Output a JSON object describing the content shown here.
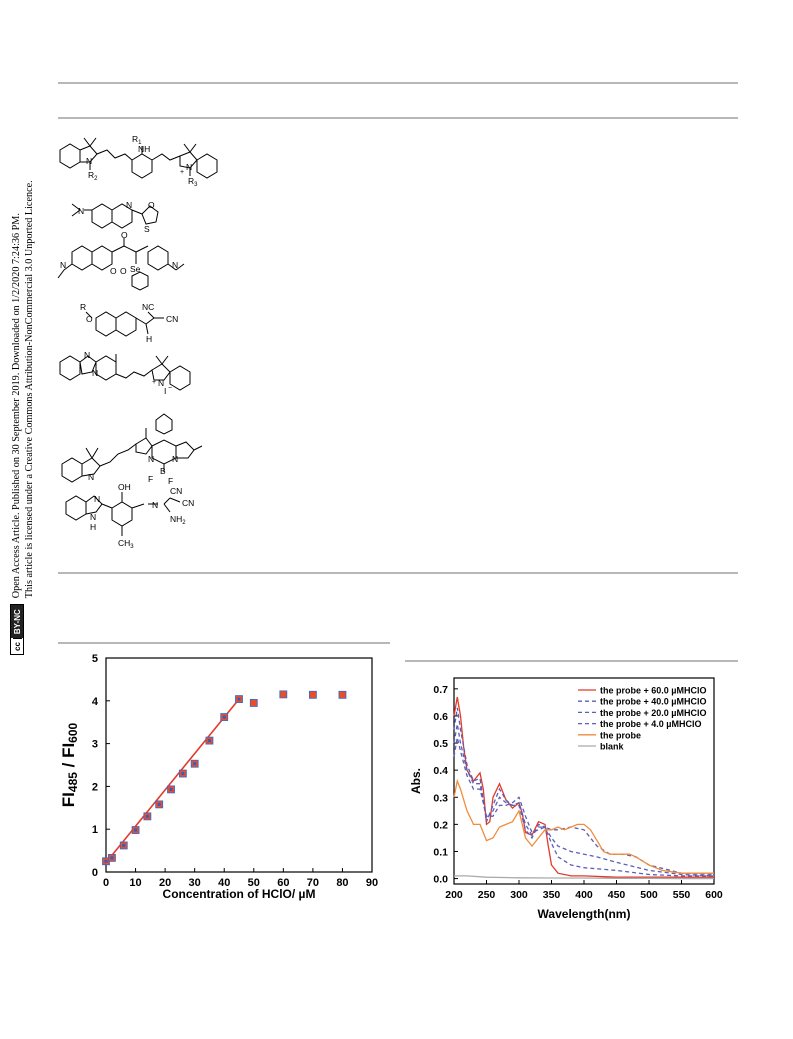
{
  "license": {
    "badge_cc": "cc",
    "badge_terms": "BY-NC",
    "line1": "Open Access Article. Published on 30 September 2019. Downloaded on 1/2/2020 7:24:36 PM.",
    "line2": "This article is licensed under a Creative Commons Attribution-NonCommercial 3.0 Unported Licence."
  },
  "structures": {
    "s1": {
      "r1": "R",
      "r1_sub": "1",
      "nh": "NH",
      "r2": "R",
      "r2_sub": "2",
      "n_left": "N",
      "n_right": "N",
      "plus": "+",
      "r3": "R",
      "r3_sub": "3"
    },
    "s2": {
      "n_amine": "N",
      "n_ring": "N",
      "o": "O",
      "s": "S"
    },
    "s3": {
      "o_keto": "O",
      "se": "Se",
      "n_left": "N",
      "n_right": "N",
      "o_ring": "O",
      "o_lactone": "O"
    },
    "s4": {
      "r": "R",
      "o": "O",
      "nc": "NC",
      "cn": "CN",
      "h": "H"
    },
    "s5": {
      "n1": "N",
      "n2": "N",
      "n3": "N",
      "plus": "+",
      "iodide": "I",
      "minus": "−"
    },
    "s6": {
      "n_indole": "N",
      "n_bodipy1": "N",
      "n_bodipy2": "N",
      "b": "B",
      "f1": "F",
      "f2": "F"
    },
    "s7": {
      "n_imid": "N",
      "nh": "N",
      "h": "H",
      "oh": "OH",
      "n_imine": "N",
      "cn1": "CN",
      "cn2": "CN",
      "nh2": "NH",
      "nh2_sub": "2",
      "ch3": "CH",
      "ch3_sub": "3"
    }
  },
  "chart_data": [
    {
      "type": "scatter",
      "ylabel": "FI485 / FI600",
      "ylabel_main": "FI",
      "ylabel_sub1": "485",
      "ylabel_sep": " / FI",
      "ylabel_sub2": "600",
      "xlabel": "Concentration of HClO/ µM",
      "xlim": [
        0,
        90
      ],
      "ylim": [
        0,
        5
      ],
      "xticks": [
        0,
        10,
        20,
        30,
        40,
        50,
        60,
        70,
        80,
        90
      ],
      "yticks": [
        0,
        1,
        2,
        3,
        4,
        5
      ],
      "points": [
        {
          "x": 0,
          "y": 0.25
        },
        {
          "x": 2,
          "y": 0.33
        },
        {
          "x": 6,
          "y": 0.62
        },
        {
          "x": 10,
          "y": 0.98
        },
        {
          "x": 14,
          "y": 1.3
        },
        {
          "x": 18,
          "y": 1.58
        },
        {
          "x": 22,
          "y": 1.93
        },
        {
          "x": 26,
          "y": 2.3
        },
        {
          "x": 30,
          "y": 2.53
        },
        {
          "x": 35,
          "y": 3.07
        },
        {
          "x": 40,
          "y": 3.62
        },
        {
          "x": 45,
          "y": 4.04
        },
        {
          "x": 50,
          "y": 3.95
        },
        {
          "x": 60,
          "y": 4.15
        },
        {
          "x": 70,
          "y": 4.14
        },
        {
          "x": 80,
          "y": 4.14
        }
      ],
      "fit_line": {
        "x": [
          0,
          45
        ],
        "y": [
          0.22,
          4.04
        ]
      },
      "colors": {
        "marker_fill": "#e94e2b",
        "marker_inner": "#2f5fbf",
        "marker_edge": "#2e6ad0",
        "fit": "#e23a2a",
        "axis": "#000000"
      }
    },
    {
      "type": "line",
      "ylabel": "Abs.",
      "xlabel": "Wavelength(nm)",
      "xlim": [
        200,
        600
      ],
      "ylim": [
        -0.02,
        0.74
      ],
      "xticks": [
        200,
        250,
        300,
        350,
        400,
        450,
        500,
        550,
        600
      ],
      "yticks": [
        0.0,
        0.1,
        0.2,
        0.3,
        0.4,
        0.5,
        0.6,
        0.7
      ],
      "legend_position": "top-right",
      "series": [
        {
          "name": "the probe + 60.0 µMHClO",
          "color": "#e23a2a",
          "dash": "solid",
          "x": [
            200,
            205,
            210,
            215,
            220,
            230,
            240,
            245,
            250,
            255,
            260,
            270,
            280,
            290,
            300,
            305,
            310,
            320,
            330,
            340,
            345,
            350,
            360,
            380,
            400,
            450,
            500,
            550,
            600
          ],
          "y": [
            0.6,
            0.67,
            0.6,
            0.48,
            0.4,
            0.36,
            0.39,
            0.33,
            0.2,
            0.21,
            0.3,
            0.35,
            0.29,
            0.26,
            0.28,
            0.24,
            0.17,
            0.16,
            0.21,
            0.2,
            0.12,
            0.05,
            0.02,
            0.01,
            0.01,
            0.005,
            0.005,
            0.005,
            0.005
          ]
        },
        {
          "name": "the probe + 40.0 µMHClO",
          "color": "#5a5fb8",
          "dash": "dash",
          "x": [
            200,
            205,
            210,
            220,
            230,
            240,
            250,
            260,
            270,
            280,
            290,
            300,
            310,
            320,
            330,
            340,
            350,
            360,
            380,
            400,
            450,
            500,
            550,
            600
          ],
          "y": [
            0.55,
            0.63,
            0.55,
            0.42,
            0.36,
            0.37,
            0.21,
            0.27,
            0.33,
            0.29,
            0.27,
            0.27,
            0.18,
            0.15,
            0.2,
            0.19,
            0.13,
            0.08,
            0.05,
            0.04,
            0.03,
            0.015,
            0.01,
            0.01
          ]
        },
        {
          "name": "the probe + 20.0 µMHClO",
          "color": "#5a5fb8",
          "dash": "dash",
          "x": [
            200,
            205,
            210,
            220,
            230,
            240,
            250,
            260,
            270,
            280,
            290,
            300,
            310,
            320,
            330,
            340,
            350,
            360,
            380,
            400,
            420,
            450,
            500,
            550,
            600
          ],
          "y": [
            0.5,
            0.57,
            0.5,
            0.4,
            0.35,
            0.35,
            0.22,
            0.25,
            0.3,
            0.28,
            0.27,
            0.28,
            0.2,
            0.16,
            0.19,
            0.19,
            0.15,
            0.12,
            0.1,
            0.09,
            0.08,
            0.06,
            0.03,
            0.015,
            0.01
          ]
        },
        {
          "name": "the probe + 4.0   µMHClO",
          "color": "#5a5fb8",
          "dash": "dash",
          "x": [
            200,
            205,
            210,
            220,
            230,
            240,
            250,
            260,
            270,
            280,
            290,
            300,
            310,
            320,
            330,
            340,
            350,
            360,
            380,
            400,
            420,
            440,
            460,
            480,
            500,
            550,
            600
          ],
          "y": [
            0.45,
            0.52,
            0.47,
            0.38,
            0.33,
            0.33,
            0.23,
            0.23,
            0.27,
            0.27,
            0.28,
            0.3,
            0.23,
            0.17,
            0.18,
            0.19,
            0.18,
            0.18,
            0.19,
            0.18,
            0.12,
            0.09,
            0.09,
            0.08,
            0.05,
            0.02,
            0.015
          ]
        },
        {
          "name": "the probe",
          "color": "#f08c3c",
          "dash": "solid",
          "x": [
            200,
            205,
            210,
            220,
            230,
            240,
            250,
            260,
            270,
            280,
            290,
            300,
            310,
            320,
            330,
            340,
            350,
            360,
            370,
            380,
            390,
            400,
            410,
            420,
            430,
            440,
            450,
            460,
            470,
            480,
            500,
            520,
            550,
            600
          ],
          "y": [
            0.3,
            0.36,
            0.33,
            0.25,
            0.2,
            0.2,
            0.14,
            0.15,
            0.19,
            0.2,
            0.21,
            0.25,
            0.15,
            0.12,
            0.15,
            0.18,
            0.18,
            0.19,
            0.18,
            0.19,
            0.2,
            0.2,
            0.18,
            0.14,
            0.1,
            0.09,
            0.09,
            0.09,
            0.09,
            0.08,
            0.05,
            0.03,
            0.02,
            0.02
          ]
        },
        {
          "name": "blank",
          "color": "#aaaaaa",
          "dash": "solid",
          "x": [
            200,
            220,
            250,
            300,
            350,
            400,
            450,
            500,
            550,
            600
          ],
          "y": [
            0.01,
            0.01,
            0.005,
            0.003,
            0.002,
            0.002,
            0.001,
            0.001,
            0.0,
            0.0
          ]
        }
      ]
    }
  ]
}
